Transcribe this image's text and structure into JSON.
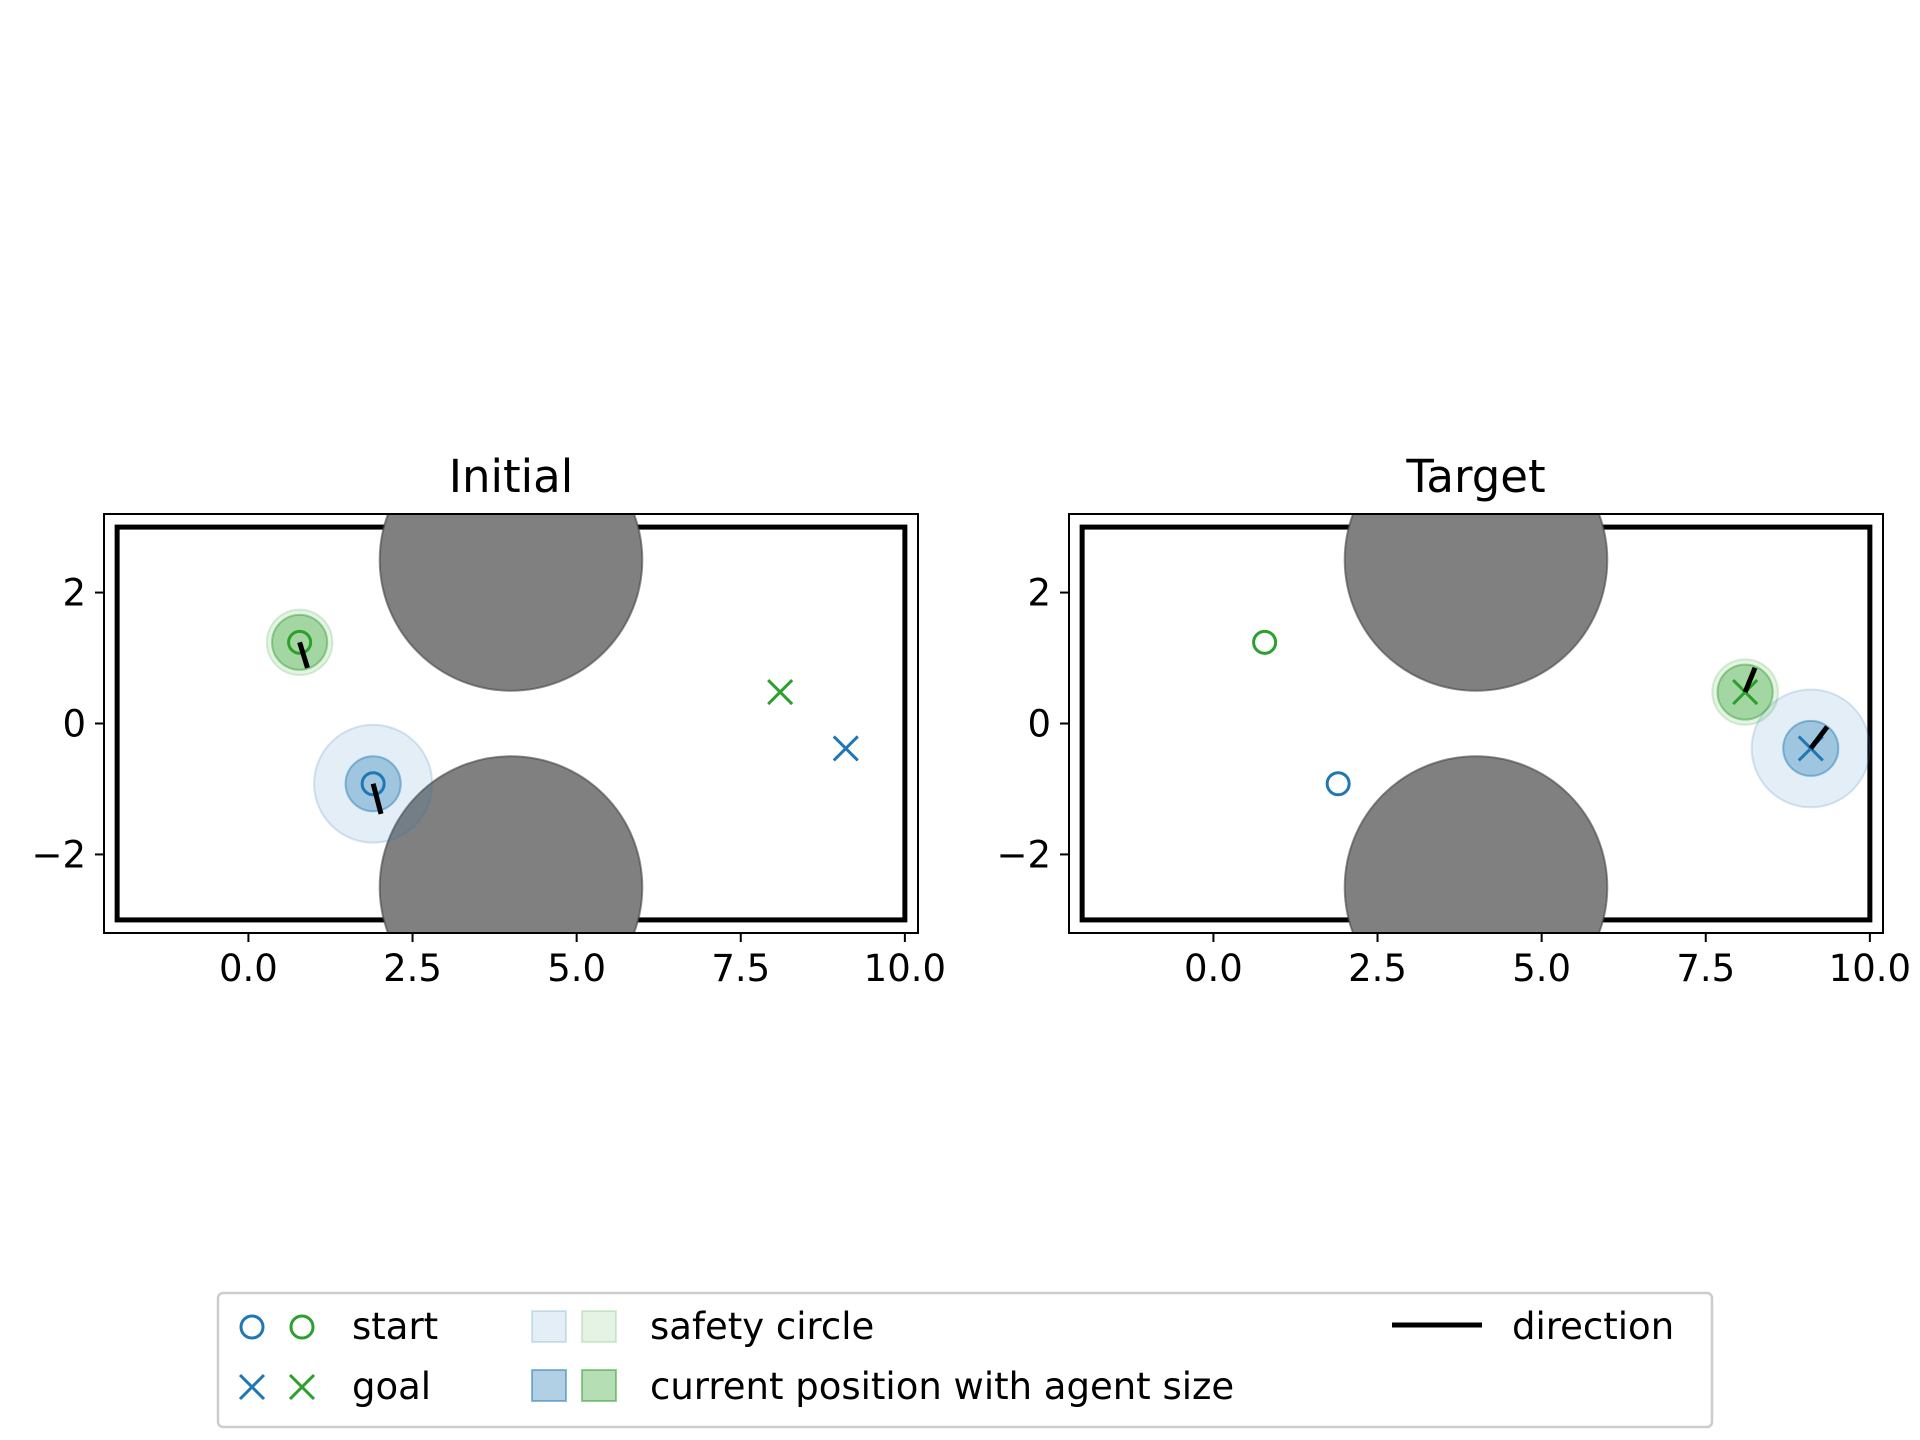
{
  "chart_data": [
    {
      "type": "scatter",
      "title": "Initial",
      "xlabel": "",
      "ylabel": "",
      "xlim": [
        -2.2,
        10.2
      ],
      "ylim": [
        -3.2,
        3.2
      ],
      "xticks": [
        0.0,
        2.5,
        5.0,
        7.5,
        10.0
      ],
      "xtick_labels": [
        "0.0",
        "2.5",
        "5.0",
        "7.5",
        "10.0"
      ],
      "yticks": [
        -2,
        0,
        2
      ],
      "ytick_labels": [
        "−2",
        "0",
        "2"
      ],
      "boundary": {
        "x": [
          -2,
          10
        ],
        "y": [
          -3,
          3
        ]
      },
      "obstacles": [
        {
          "x": 4.0,
          "y": 2.5,
          "r": 2.0
        },
        {
          "x": 4.0,
          "y": -2.5,
          "r": 2.0
        }
      ],
      "agents": [
        {
          "color": "#1f77b4",
          "start": [
            1.9,
            -0.92
          ],
          "goal": [
            9.1,
            -0.38
          ],
          "position": [
            1.9,
            -0.92
          ],
          "agent_radius": 0.42,
          "safety_radius": 0.9,
          "direction": [
            2.02,
            -1.38
          ]
        },
        {
          "color": "#2ca02c",
          "start": [
            0.78,
            1.24
          ],
          "goal": [
            8.1,
            0.48
          ],
          "position": [
            0.78,
            1.24
          ],
          "agent_radius": 0.42,
          "safety_radius": 0.5,
          "direction": [
            0.9,
            0.85
          ]
        }
      ]
    },
    {
      "type": "scatter",
      "title": "Target",
      "xlabel": "",
      "ylabel": "",
      "xlim": [
        -2.2,
        10.2
      ],
      "ylim": [
        -3.2,
        3.2
      ],
      "xticks": [
        0.0,
        2.5,
        5.0,
        7.5,
        10.0
      ],
      "xtick_labels": [
        "0.0",
        "2.5",
        "5.0",
        "7.5",
        "10.0"
      ],
      "yticks": [
        -2,
        0,
        2
      ],
      "ytick_labels": [
        "−2",
        "0",
        "2"
      ],
      "boundary": {
        "x": [
          -2,
          10
        ],
        "y": [
          -3,
          3
        ]
      },
      "obstacles": [
        {
          "x": 4.0,
          "y": 2.5,
          "r": 2.0
        },
        {
          "x": 4.0,
          "y": -2.5,
          "r": 2.0
        }
      ],
      "agents": [
        {
          "color": "#1f77b4",
          "start": [
            1.9,
            -0.92
          ],
          "goal": [
            9.1,
            -0.38
          ],
          "position": [
            9.1,
            -0.38
          ],
          "agent_radius": 0.42,
          "safety_radius": 0.9,
          "direction": [
            9.35,
            -0.05
          ]
        },
        {
          "color": "#2ca02c",
          "start": [
            0.78,
            1.24
          ],
          "goal": [
            8.1,
            0.48
          ],
          "position": [
            8.1,
            0.48
          ],
          "agent_radius": 0.42,
          "safety_radius": 0.5,
          "direction": [
            8.25,
            0.85
          ]
        }
      ]
    }
  ],
  "legend": {
    "location": "bottom-center",
    "start_label": "start",
    "goal_label": "goal",
    "safety_label": "safety circle",
    "current_label": "current position with agent size",
    "direction_label": "direction",
    "colors": [
      "#1f77b4",
      "#2ca02c"
    ]
  }
}
